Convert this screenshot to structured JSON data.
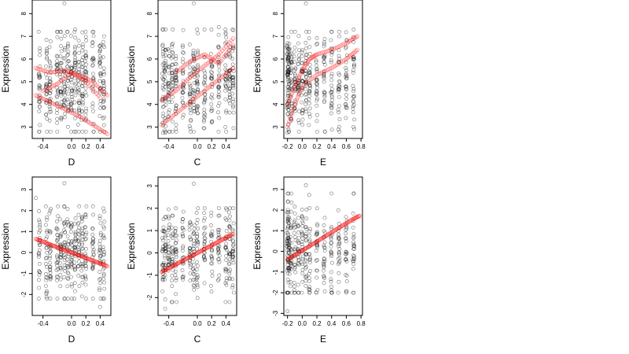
{
  "colors": {
    "observed": "#000000",
    "fitted": "#ff0000"
  },
  "chart_data": [
    {
      "type": "scatter",
      "row": 0,
      "col": 0,
      "xlabel": "D",
      "ylabel": "Expression",
      "xlim": [
        -0.55,
        0.55
      ],
      "ylim": [
        2.5,
        8.6
      ],
      "xticks": [
        -0.4,
        0.0,
        0.2,
        0.4
      ],
      "yticks": [
        3,
        4,
        5,
        6,
        7,
        8
      ],
      "xticklabels": [
        "-0.4",
        "0.0",
        "0.2",
        "0.4"
      ],
      "yticklabels": [
        "3",
        "4",
        "5",
        "6",
        "7",
        "8"
      ],
      "grid": false,
      "cloud": {
        "x_range": [
          -0.5,
          0.5
        ],
        "y_range": [
          2.8,
          7.2
        ],
        "y_center": 5.0,
        "n": 420,
        "columns": [
          -0.45,
          -0.35,
          -0.3,
          -0.2,
          -0.15,
          -0.1,
          -0.05,
          0.0,
          0.05,
          0.1,
          0.15,
          0.2,
          0.3,
          0.4,
          0.45
        ]
      },
      "outlier_points": [
        [
          -0.1,
          8.45
        ],
        [
          0.05,
          7.3
        ],
        [
          -0.45,
          2.8
        ],
        [
          0.2,
          2.8
        ],
        [
          0.4,
          2.8
        ]
      ],
      "fitted_series": [
        {
          "name": "",
          "x": [
            -0.5,
            -0.3,
            -0.1,
            0.1,
            0.3,
            0.5
          ],
          "y": [
            5.6,
            5.4,
            5.5,
            5.3,
            5.0,
            4.4
          ]
        },
        {
          "name": "",
          "x": [
            -0.5,
            -0.3,
            -0.1,
            0.1,
            0.3,
            0.5
          ],
          "y": [
            4.4,
            4.1,
            3.8,
            3.5,
            3.1,
            2.7
          ]
        },
        {
          "name": "",
          "x": [
            -0.4,
            -0.2,
            0.0,
            0.2,
            0.4
          ],
          "y": [
            4.6,
            4.9,
            5.4,
            5.0,
            4.3
          ]
        }
      ]
    },
    {
      "type": "scatter",
      "row": 0,
      "col": 1,
      "xlabel": "C",
      "ylabel": "Expression",
      "xlim": [
        -0.55,
        0.55
      ],
      "ylim": [
        2.5,
        8.6
      ],
      "xticks": [
        -0.4,
        0.0,
        0.2,
        0.4
      ],
      "yticks": [
        3,
        4,
        5,
        6,
        7,
        8
      ],
      "xticklabels": [
        "-0.4",
        "0.0",
        "0.2",
        "0.4"
      ],
      "yticklabels": [
        "3",
        "4",
        "5",
        "6",
        "7",
        "8"
      ],
      "grid": false,
      "cloud": {
        "x_range": [
          -0.5,
          0.5
        ],
        "y_range": [
          2.8,
          7.3
        ],
        "y_center": 4.9,
        "n": 420,
        "columns": [
          -0.48,
          -0.45,
          -0.4,
          -0.35,
          -0.3,
          -0.2,
          -0.1,
          -0.05,
          0.0,
          0.1,
          0.2,
          0.3,
          0.4,
          0.45,
          0.5
        ]
      },
      "outlier_points": [
        [
          -0.05,
          8.45
        ],
        [
          -0.48,
          2.75
        ],
        [
          -0.45,
          2.75
        ],
        [
          0.3,
          7.4
        ]
      ],
      "fitted_series": [
        {
          "name": "",
          "x": [
            -0.5,
            -0.3,
            -0.1,
            0.1,
            0.3,
            0.5
          ],
          "y": [
            3.1,
            3.6,
            4.1,
            4.6,
            5.1,
            5.6
          ]
        },
        {
          "name": "",
          "x": [
            -0.5,
            -0.3,
            -0.1,
            0.1,
            0.3,
            0.5
          ],
          "y": [
            4.2,
            4.6,
            5.2,
            5.7,
            6.2,
            6.9
          ]
        },
        {
          "name": "",
          "x": [
            -0.3,
            -0.1,
            0.1,
            0.3,
            0.5
          ],
          "y": [
            5.4,
            5.9,
            6.2,
            5.8,
            6.6
          ]
        }
      ]
    },
    {
      "type": "scatter",
      "row": 0,
      "col": 2,
      "xlabel": "E",
      "ylabel": "Expression",
      "xlim": [
        -0.25,
        0.82
      ],
      "ylim": [
        2.5,
        8.6
      ],
      "xticks": [
        -0.2,
        0.0,
        0.2,
        0.4,
        0.6,
        0.8
      ],
      "yticks": [
        3,
        4,
        5,
        6,
        7,
        8
      ],
      "xticklabels": [
        "-0.2",
        "0.0",
        "0.2",
        "0.4",
        "0.6",
        "0.8"
      ],
      "yticklabels": [
        "3",
        "4",
        "5",
        "6",
        "7",
        "8"
      ],
      "grid": false,
      "cloud": {
        "x_range": [
          -0.2,
          0.75
        ],
        "y_range": [
          2.8,
          7.2
        ],
        "y_center": 5.0,
        "n": 420,
        "columns": [
          -0.2,
          -0.19,
          -0.18,
          -0.15,
          -0.1,
          -0.05,
          0.0,
          0.05,
          0.1,
          0.2,
          0.3,
          0.4,
          0.5,
          0.6,
          0.7
        ]
      },
      "outlier_points": [
        [
          0.05,
          8.45
        ],
        [
          -0.2,
          2.75
        ],
        [
          -0.18,
          2.8
        ],
        [
          0.7,
          7.3
        ]
      ],
      "fitted_series": [
        {
          "name": "",
          "x": [
            -0.2,
            -0.1,
            0.0,
            0.2,
            0.4,
            0.6,
            0.75
          ],
          "y": [
            3.0,
            4.0,
            4.8,
            5.3,
            5.6,
            6.0,
            6.4
          ]
        },
        {
          "name": "",
          "x": [
            -0.2,
            -0.1,
            0.0,
            0.1,
            0.2,
            0.4,
            0.6,
            0.75
          ],
          "y": [
            4.0,
            4.8,
            5.5,
            6.0,
            6.2,
            6.4,
            6.7,
            7.0
          ]
        }
      ]
    },
    {
      "type": "scatter",
      "row": 1,
      "col": 0,
      "xlabel": "D",
      "ylabel": "Expression",
      "xlim": [
        -0.55,
        0.55
      ],
      "ylim": [
        -3.0,
        3.6
      ],
      "xticks": [
        -0.4,
        0.0,
        0.2,
        0.4
      ],
      "yticks": [
        -2,
        -1,
        0,
        1,
        2,
        3
      ],
      "xticklabels": [
        "-0.4",
        "0.0",
        "0.2",
        "0.4"
      ],
      "yticklabels": [
        "-2",
        "-1",
        "0",
        "1",
        "2",
        "3"
      ],
      "grid": false,
      "cloud": {
        "x_range": [
          -0.5,
          0.5
        ],
        "y_range": [
          -2.2,
          2.2
        ],
        "y_center": 0.0,
        "n": 380,
        "columns": [
          -0.45,
          -0.35,
          -0.3,
          -0.2,
          -0.15,
          -0.1,
          -0.05,
          0.0,
          0.05,
          0.1,
          0.15,
          0.2,
          0.3,
          0.4,
          0.45
        ]
      },
      "outlier_points": [
        [
          -0.1,
          3.3
        ],
        [
          0.4,
          -2.6
        ],
        [
          -0.5,
          2.6
        ]
      ],
      "fitted_series": [
        {
          "name": "",
          "x": [
            -0.5,
            -0.4,
            -0.3,
            -0.2,
            -0.1,
            0.0,
            0.1,
            0.2,
            0.3,
            0.4,
            0.5
          ],
          "y": [
            0.65,
            0.52,
            0.38,
            0.25,
            0.12,
            0.0,
            -0.13,
            -0.26,
            -0.39,
            -0.52,
            -0.65
          ]
        }
      ]
    },
    {
      "type": "scatter",
      "row": 1,
      "col": 1,
      "xlabel": "C",
      "ylabel": "Expression",
      "xlim": [
        -0.55,
        0.55
      ],
      "ylim": [
        -2.8,
        3.4
      ],
      "xticks": [
        -0.4,
        0.0,
        0.2,
        0.4
      ],
      "yticks": [
        -2,
        -1,
        0,
        1,
        2,
        3
      ],
      "xticklabels": [
        "-0.4",
        "0.0",
        "0.2",
        "0.4"
      ],
      "yticklabels": [
        "-2",
        "-1",
        "0",
        "1",
        "2",
        "3"
      ],
      "grid": false,
      "cloud": {
        "x_range": [
          -0.5,
          0.5
        ],
        "y_range": [
          -2.2,
          2.0
        ],
        "y_center": 0.0,
        "n": 380,
        "columns": [
          -0.48,
          -0.45,
          -0.4,
          -0.35,
          -0.3,
          -0.2,
          -0.1,
          -0.05,
          0.0,
          0.1,
          0.2,
          0.3,
          0.4,
          0.45,
          0.5
        ]
      },
      "outlier_points": [
        [
          -0.05,
          3.1
        ],
        [
          -0.45,
          -2.5
        ],
        [
          0.45,
          -2.2
        ]
      ],
      "fitted_series": [
        {
          "name": "",
          "x": [
            -0.5,
            -0.4,
            -0.3,
            -0.2,
            -0.1,
            0.0,
            0.1,
            0.2,
            0.3,
            0.4,
            0.5
          ],
          "y": [
            -0.85,
            -0.68,
            -0.51,
            -0.34,
            -0.17,
            0.0,
            0.17,
            0.34,
            0.51,
            0.68,
            0.85
          ]
        }
      ]
    },
    {
      "type": "scatter",
      "row": 1,
      "col": 2,
      "xlabel": "E",
      "ylabel": "Expression",
      "xlim": [
        -0.25,
        0.82
      ],
      "ylim": [
        -3.1,
        3.6
      ],
      "xticks": [
        -0.2,
        0.0,
        0.2,
        0.4,
        0.6,
        0.8
      ],
      "yticks": [
        -3,
        -2,
        -1,
        0,
        1,
        2,
        3
      ],
      "xticklabels": [
        "-0.2",
        "0.0",
        "0.2",
        "0.4",
        "0.6",
        "0.8"
      ],
      "yticklabels": [
        "-3",
        "-2",
        "-1",
        "0",
        "1",
        "2",
        "3"
      ],
      "grid": false,
      "cloud": {
        "x_range": [
          -0.2,
          0.75
        ],
        "y_range": [
          -2.0,
          2.8
        ],
        "y_center": 0.0,
        "n": 380,
        "columns": [
          -0.2,
          -0.19,
          -0.18,
          -0.15,
          -0.1,
          -0.05,
          0.0,
          0.05,
          0.1,
          0.2,
          0.3,
          0.4,
          0.5,
          0.6,
          0.7
        ]
      },
      "outlier_points": [
        [
          0.05,
          3.2
        ],
        [
          -0.2,
          -2.9
        ],
        [
          0.7,
          2.8
        ]
      ],
      "fitted_series": [
        {
          "name": "",
          "x": [
            -0.2,
            -0.1,
            0.0,
            0.1,
            0.2,
            0.3,
            0.4,
            0.5,
            0.6,
            0.7,
            0.78
          ],
          "y": [
            -0.4,
            -0.18,
            0.04,
            0.26,
            0.48,
            0.7,
            0.92,
            1.14,
            1.36,
            1.58,
            1.72
          ]
        }
      ]
    }
  ]
}
